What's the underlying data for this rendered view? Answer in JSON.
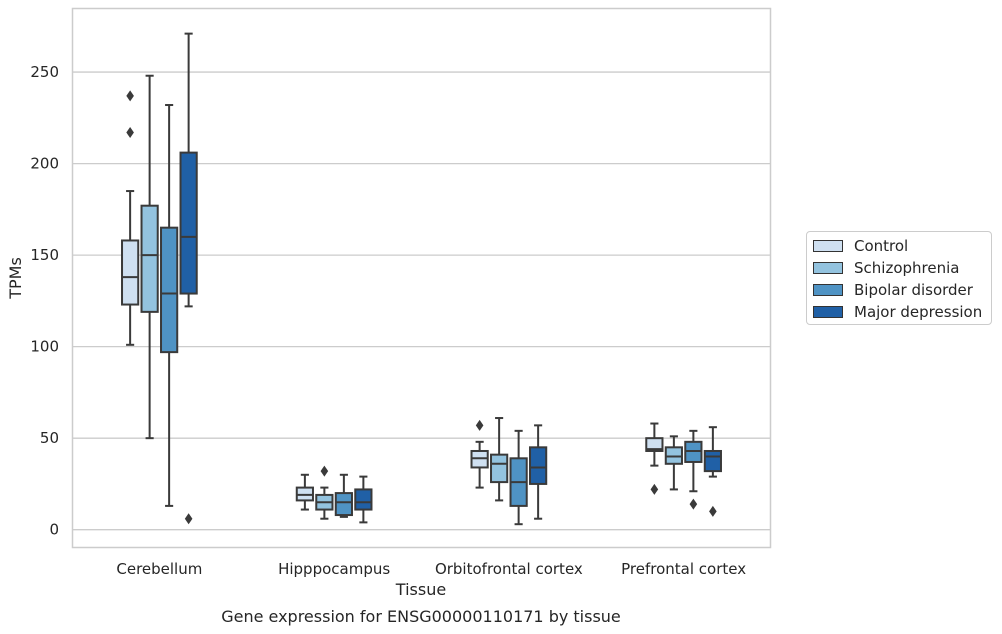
{
  "chart_data": {
    "type": "box",
    "title": "Gene expression for ENSG00000110171 by tissue",
    "xlabel": "Tissue",
    "ylabel": "TPMs",
    "ylim": [
      -10,
      285
    ],
    "yticks": [
      0,
      50,
      100,
      150,
      200,
      250
    ],
    "grid": "horizontal",
    "legend_position": "right",
    "categories": [
      "Cerebellum",
      "Hipppocampus",
      "Orbitofrontal cortex",
      "Prefrontal cortex"
    ],
    "series": [
      {
        "name": "Control",
        "color": "#cfe0f1",
        "boxes": [
          {
            "whislo": 101,
            "q1": 123,
            "med": 138,
            "q3": 158,
            "whishi": 185,
            "fliers": [
              217,
              237
            ]
          },
          {
            "whislo": 11,
            "q1": 16,
            "med": 19,
            "q3": 23,
            "whishi": 30,
            "fliers": []
          },
          {
            "whislo": 23,
            "q1": 34,
            "med": 39,
            "q3": 43,
            "whishi": 48,
            "fliers": [
              57
            ]
          },
          {
            "whislo": 35,
            "q1": 43,
            "med": 44,
            "q3": 50,
            "whishi": 58,
            "fliers": [
              22
            ]
          }
        ]
      },
      {
        "name": "Schizophrenia",
        "color": "#93c3df",
        "boxes": [
          {
            "whislo": 50,
            "q1": 119,
            "med": 150,
            "q3": 177,
            "whishi": 248,
            "fliers": []
          },
          {
            "whislo": 6,
            "q1": 11,
            "med": 15,
            "q3": 19,
            "whishi": 23,
            "fliers": [
              32
            ]
          },
          {
            "whislo": 16,
            "q1": 26,
            "med": 36,
            "q3": 41,
            "whishi": 61,
            "fliers": []
          },
          {
            "whislo": 22,
            "q1": 36,
            "med": 40,
            "q3": 45,
            "whishi": 51,
            "fliers": []
          }
        ]
      },
      {
        "name": "Bipolar disorder",
        "color": "#4f93c4",
        "boxes": [
          {
            "whislo": 13,
            "q1": 97,
            "med": 129,
            "q3": 165,
            "whishi": 232,
            "fliers": []
          },
          {
            "whislo": 7,
            "q1": 8,
            "med": 15,
            "q3": 20,
            "whishi": 30,
            "fliers": []
          },
          {
            "whislo": 3,
            "q1": 13,
            "med": 26,
            "q3": 39,
            "whishi": 54,
            "fliers": []
          },
          {
            "whislo": 21,
            "q1": 37,
            "med": 43,
            "q3": 48,
            "whishi": 54,
            "fliers": [
              14
            ]
          }
        ]
      },
      {
        "name": "Major depression",
        "color": "#2060a6",
        "boxes": [
          {
            "whislo": 122,
            "q1": 129,
            "med": 160,
            "q3": 206,
            "whishi": 271,
            "fliers": [
              6
            ]
          },
          {
            "whislo": 4,
            "q1": 11,
            "med": 15,
            "q3": 22,
            "whishi": 29,
            "fliers": []
          },
          {
            "whislo": 6,
            "q1": 25,
            "med": 34,
            "q3": 45,
            "whishi": 57,
            "fliers": []
          },
          {
            "whislo": 29,
            "q1": 32,
            "med": 40,
            "q3": 43,
            "whishi": 56,
            "fliers": [
              10
            ]
          }
        ]
      }
    ]
  }
}
